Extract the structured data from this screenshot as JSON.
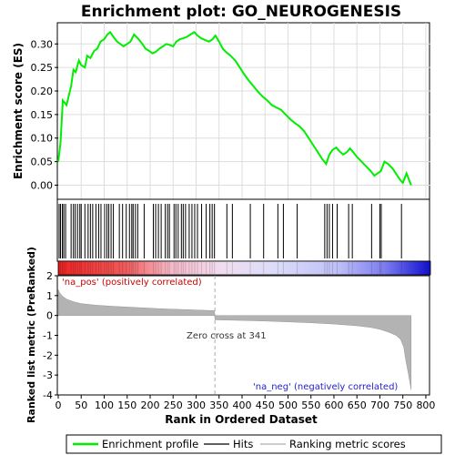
{
  "chart_data": {
    "type": "line",
    "title": "Enrichment plot: GO_NEUROGENESIS",
    "top_panel": {
      "ylabel": "Enrichment score (ES)",
      "ylim": [
        -0.03,
        0.345
      ],
      "yticks": [
        "0.00",
        "0.05",
        "0.10",
        "0.15",
        "0.20",
        "0.25",
        "0.30"
      ],
      "ytick_values": [
        0.0,
        0.05,
        0.1,
        0.15,
        0.2,
        0.25,
        0.3
      ],
      "series_color": "#00ee00",
      "grid": true,
      "es_profile": {
        "x": [
          0,
          5,
          10,
          18,
          28,
          33,
          38,
          45,
          50,
          58,
          63,
          70,
          78,
          85,
          92,
          100,
          107,
          113,
          120,
          128,
          135,
          142,
          150,
          157,
          165,
          170,
          175,
          183,
          190,
          198,
          205,
          212,
          220,
          228,
          235,
          242,
          250,
          257,
          265,
          272,
          280,
          288,
          296,
          303,
          311,
          320,
          328,
          336,
          342,
          350,
          358,
          366,
          375,
          385,
          395,
          405,
          415,
          425,
          435,
          445,
          455,
          465,
          475,
          485,
          495,
          505,
          515,
          525,
          535,
          545,
          555,
          565,
          575,
          583,
          590,
          597,
          605,
          612,
          620,
          628,
          635,
          642,
          650,
          660,
          670,
          680,
          688,
          695,
          702,
          710,
          718,
          728,
          738,
          745,
          750,
          758,
          768
        ],
        "y": [
          0.05,
          0.09,
          0.18,
          0.17,
          0.21,
          0.245,
          0.24,
          0.265,
          0.255,
          0.25,
          0.275,
          0.27,
          0.285,
          0.29,
          0.305,
          0.31,
          0.32,
          0.325,
          0.315,
          0.305,
          0.3,
          0.295,
          0.3,
          0.305,
          0.32,
          0.315,
          0.31,
          0.3,
          0.29,
          0.285,
          0.28,
          0.283,
          0.29,
          0.295,
          0.3,
          0.298,
          0.295,
          0.305,
          0.31,
          0.312,
          0.315,
          0.32,
          0.325,
          0.318,
          0.312,
          0.308,
          0.305,
          0.31,
          0.318,
          0.305,
          0.29,
          0.282,
          0.275,
          0.265,
          0.25,
          0.235,
          0.222,
          0.21,
          0.198,
          0.188,
          0.18,
          0.17,
          0.165,
          0.16,
          0.15,
          0.14,
          0.132,
          0.125,
          0.115,
          0.1,
          0.085,
          0.07,
          0.055,
          0.045,
          0.065,
          0.075,
          0.08,
          0.072,
          0.065,
          0.07,
          0.078,
          0.07,
          0.06,
          0.05,
          0.04,
          0.03,
          0.02,
          0.025,
          0.03,
          0.05,
          0.045,
          0.035,
          0.02,
          0.01,
          0.005,
          0.025,
          0.0
        ]
      },
      "hits": [
        2,
        5,
        9,
        12,
        16,
        28,
        33,
        37,
        42,
        47,
        50,
        58,
        65,
        70,
        75,
        82,
        88,
        93,
        101,
        106,
        110,
        115,
        120,
        133,
        140,
        148,
        155,
        160,
        163,
        168,
        173,
        187,
        207,
        212,
        218,
        224,
        233,
        238,
        242,
        252,
        256,
        261,
        268,
        272,
        277,
        285,
        291,
        297,
        303,
        312,
        322,
        330,
        335,
        340,
        367,
        379,
        418,
        447,
        478,
        490,
        520,
        580,
        585,
        590,
        597,
        607,
        632,
        640,
        682,
        700,
        703,
        747
      ]
    },
    "bottom_panel": {
      "ylabel": "Ranked list metric (PreRanked)",
      "xlabel": "Rank in Ordered Dataset",
      "ylim": [
        -4,
        2
      ],
      "yticks": [
        "2",
        "1",
        "0",
        "-1",
        "-2",
        "-3",
        "-4"
      ],
      "ytick_values": [
        2,
        1,
        0,
        -1,
        -2,
        -3,
        -4
      ],
      "xticks": [
        "0",
        "50",
        "100",
        "150",
        "200",
        "250",
        "300",
        "350",
        "400",
        "450",
        "500",
        "550",
        "600",
        "650",
        "700",
        "750",
        "800"
      ],
      "xtick_values": [
        0,
        50,
        100,
        150,
        200,
        250,
        300,
        350,
        400,
        450,
        500,
        550,
        600,
        650,
        700,
        750,
        800
      ],
      "xlim": [
        0,
        810
      ],
      "n_genes": 768,
      "zero_cross": 341,
      "metric_curve": {
        "x": [
          0,
          3,
          10,
          20,
          35,
          50,
          80,
          120,
          170,
          220,
          270,
          320,
          340,
          341,
          345,
          400,
          450,
          500,
          550,
          600,
          650,
          680,
          700,
          720,
          735,
          745,
          752,
          756,
          760,
          764,
          767,
          768
        ],
        "y": [
          1.3,
          1.15,
          0.95,
          0.8,
          0.68,
          0.6,
          0.52,
          0.46,
          0.4,
          0.34,
          0.3,
          0.26,
          0.24,
          -0.22,
          -0.22,
          -0.25,
          -0.28,
          -0.32,
          -0.37,
          -0.43,
          -0.52,
          -0.6,
          -0.7,
          -0.85,
          -1.0,
          -1.2,
          -1.6,
          -2.2,
          -2.7,
          -3.2,
          -3.6,
          -3.75
        ]
      }
    },
    "annotations": {
      "pos_label": "'na_pos' (positively correlated)",
      "neg_label": "'na_neg' (negatively correlated)",
      "zero_cross_label": "Zero cross at 341",
      "pos_color": "#cc0000",
      "neg_color": "#2222cc"
    },
    "legend": {
      "placement": "bottom",
      "items": [
        {
          "label": "Enrichment profile",
          "color": "#00ee00"
        },
        {
          "label": "Hits",
          "color": "#000000"
        },
        {
          "label": "Ranking metric scores",
          "color": "#bbbbbb"
        }
      ]
    }
  }
}
